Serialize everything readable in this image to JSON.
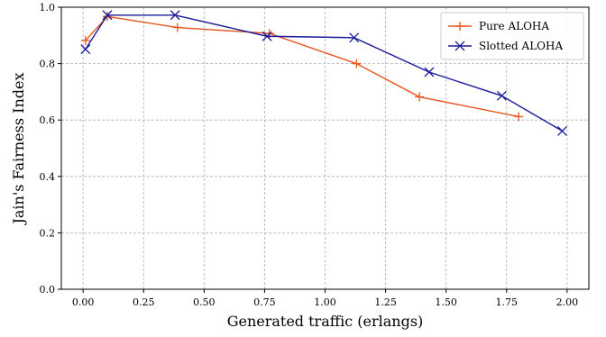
{
  "chart_data": {
    "type": "line",
    "title": "",
    "xlabel": "Generated traffic (erlangs)",
    "ylabel": "Jain's Fairness Index",
    "xlim": [
      -0.09,
      2.09
    ],
    "ylim": [
      0.0,
      1.0
    ],
    "xticks": [
      "0.00",
      "0.25",
      "0.50",
      "0.75",
      "1.00",
      "1.25",
      "1.50",
      "1.75",
      "2.00"
    ],
    "yticks": [
      "0.0",
      "0.2",
      "0.4",
      "0.6",
      "0.8",
      "1.0"
    ],
    "grid": true,
    "legend_position": "top-right",
    "series": [
      {
        "name": "Pure ALOHA",
        "color": "#e8541b",
        "marker": "plus",
        "x": [
          0.01,
          0.1,
          0.39,
          0.77,
          1.13,
          1.39,
          1.8
        ],
        "y": [
          0.882,
          0.967,
          0.928,
          0.907,
          0.8,
          0.682,
          0.612
        ]
      },
      {
        "name": "Slotted ALOHA",
        "color": "#1a1a99",
        "marker": "x",
        "x": [
          0.01,
          0.1,
          0.38,
          0.76,
          1.12,
          1.43,
          1.73,
          1.98
        ],
        "y": [
          0.851,
          0.972,
          0.972,
          0.897,
          0.892,
          0.77,
          0.686,
          0.561
        ]
      }
    ]
  }
}
